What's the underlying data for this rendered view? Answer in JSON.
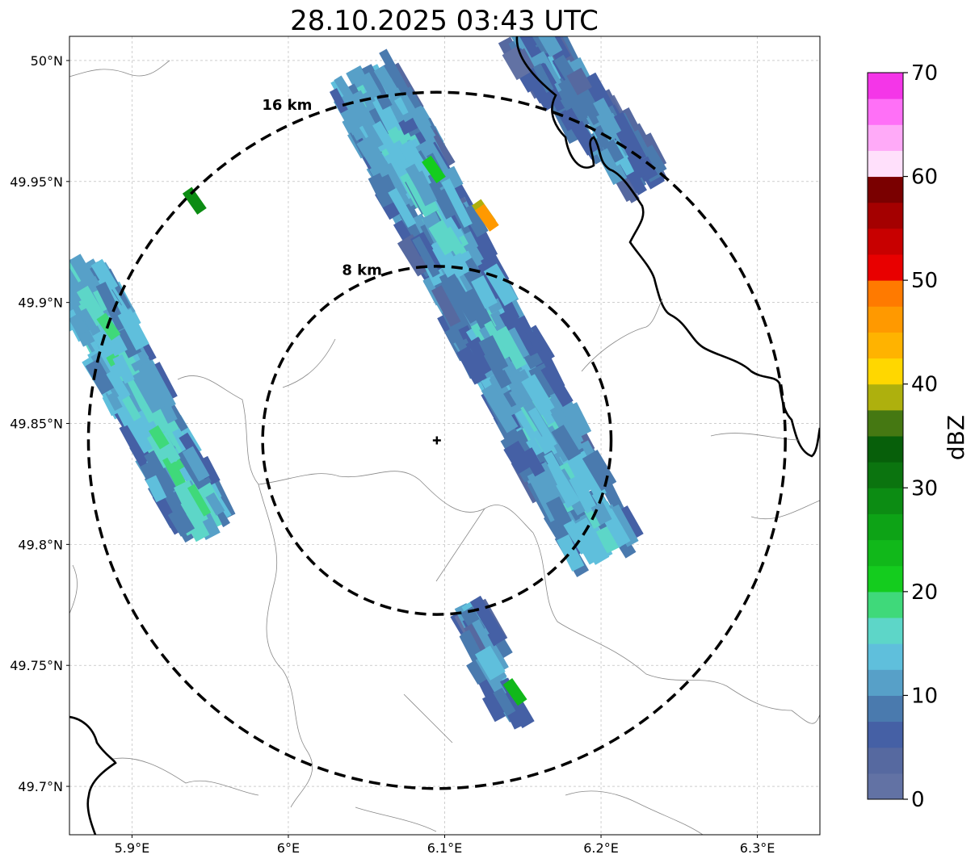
{
  "title": "28.10.2025 03:43 UTC",
  "map": {
    "lon_range": [
      5.86,
      6.34
    ],
    "lat_range": [
      49.68,
      50.01
    ],
    "center": {
      "lon": 6.095,
      "lat": 49.843
    },
    "rings": [
      {
        "label": "8 km",
        "radius_km": 8
      },
      {
        "label": "16 km",
        "radius_km": 16
      }
    ],
    "x_ticks": [
      {
        "value": 5.9,
        "label": "5.9°E"
      },
      {
        "value": 6.0,
        "label": "6°E"
      },
      {
        "value": 6.1,
        "label": "6.1°E"
      },
      {
        "value": 6.2,
        "label": "6.2°E"
      },
      {
        "value": 6.3,
        "label": "6.3°E"
      }
    ],
    "y_ticks": [
      {
        "value": 50.0,
        "label": "50°N"
      },
      {
        "value": 49.95,
        "label": "49.95°N"
      },
      {
        "value": 49.9,
        "label": "49.9°N"
      },
      {
        "value": 49.85,
        "label": "49.85°N"
      },
      {
        "value": 49.8,
        "label": "49.8°N"
      },
      {
        "value": 49.75,
        "label": "49.75°N"
      },
      {
        "value": 49.7,
        "label": "49.7°N"
      }
    ],
    "grid": true,
    "echo_bands": [
      {
        "name": "left-band",
        "start": [
          5.865,
          49.91
        ],
        "end": [
          5.945,
          49.81
        ],
        "width": 0.035,
        "dbz": 10
      },
      {
        "name": "main-band",
        "start": [
          6.05,
          49.99
        ],
        "end": [
          6.2,
          49.8
        ],
        "width": 0.045,
        "dbz": 8
      },
      {
        "name": "south-cell",
        "start": [
          6.12,
          49.77
        ],
        "end": [
          6.14,
          49.73
        ],
        "width": 0.018,
        "dbz": 5
      },
      {
        "name": "northeast-band",
        "start": [
          6.15,
          50.01
        ],
        "end": [
          6.23,
          49.95
        ],
        "width": 0.03,
        "dbz": 5
      }
    ],
    "echo_cores": [
      {
        "lon": 6.125,
        "lat": 49.937,
        "dbz": 38
      },
      {
        "lon": 6.127,
        "lat": 49.935,
        "dbz": 45
      },
      {
        "lon": 6.093,
        "lat": 49.955,
        "dbz": 22
      },
      {
        "lon": 5.94,
        "lat": 49.942,
        "dbz": 28
      },
      {
        "lon": 5.885,
        "lat": 49.89,
        "dbz": 18
      },
      {
        "lon": 6.145,
        "lat": 49.739,
        "dbz": 24
      }
    ]
  },
  "colorbar": {
    "label": "dBZ",
    "min": 0,
    "max": 70,
    "tick_values": [
      0,
      10,
      20,
      30,
      40,
      50,
      60,
      70
    ],
    "tick_labels": [
      "0",
      "10",
      "20",
      "30",
      "40",
      "50",
      "60",
      "70"
    ],
    "colors": [
      "#6272a4",
      "#5669a0",
      "#4560a5",
      "#4a7aae",
      "#57a0c8",
      "#5fbfdc",
      "#5dd6c8",
      "#3fd97a",
      "#14cc1e",
      "#11b81a",
      "#0da316",
      "#0c8c13",
      "#0b740f",
      "#075f0a",
      "#457812",
      "#aeb00d",
      "#ffd700",
      "#ffb300",
      "#ff9900",
      "#ff7a00",
      "#e80000",
      "#c80000",
      "#a40000",
      "#7a0000",
      "#ffe0fb",
      "#ffaaf8",
      "#ff70f7",
      "#f436e8"
    ]
  }
}
